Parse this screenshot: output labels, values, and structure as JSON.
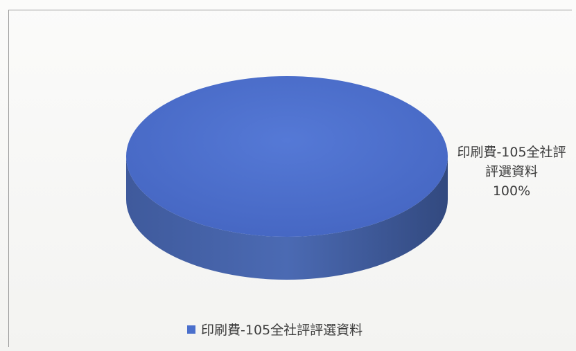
{
  "chart_data": {
    "type": "pie",
    "style": "3d",
    "categories": [
      "印刷費-105全社評評選資料"
    ],
    "values": [
      100
    ],
    "data_labels": [
      {
        "category": "印刷費-105全社評評選資料",
        "percent": "100%"
      }
    ],
    "legend": {
      "position": "bottom",
      "entries": [
        "印刷費-105全社評評選資料"
      ]
    },
    "colors": {
      "top": "#4a6fcc",
      "side": "#3a5599"
    }
  }
}
